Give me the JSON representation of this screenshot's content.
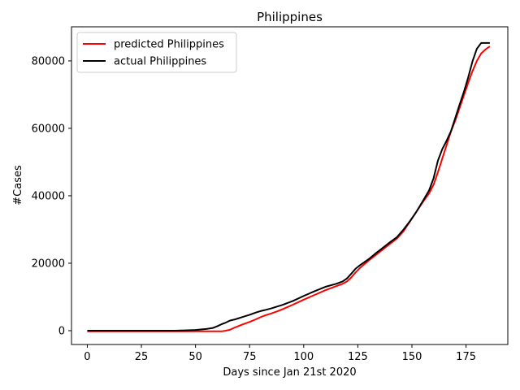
{
  "chart_data": {
    "type": "line",
    "title": "Philippines",
    "xlabel": "Days since Jan 21st 2020",
    "ylabel": "#Cases",
    "xlim": [
      -7.3,
      194.3
    ],
    "ylim": [
      -4100,
      90100
    ],
    "xticks": [
      0,
      25,
      50,
      75,
      100,
      125,
      150,
      175
    ],
    "yticks": [
      0,
      20000,
      40000,
      60000,
      80000
    ],
    "legend_position": "top-left",
    "series": [
      {
        "name": "predicted Philippines",
        "color": "#ff0000",
        "x": [
          0,
          10,
          20,
          30,
          40,
          50,
          55,
          60,
          62,
          64,
          66,
          68,
          70,
          72,
          75,
          78,
          80,
          82,
          85,
          88,
          90,
          95,
          100,
          105,
          110,
          115,
          118,
          120,
          122,
          124,
          126,
          128,
          130,
          133,
          136,
          140,
          143,
          146,
          149,
          152,
          155,
          158,
          160,
          162,
          164,
          166,
          168,
          170,
          172,
          174,
          176,
          178,
          180,
          182,
          184,
          186
        ],
        "values": [
          -200,
          -200,
          -200,
          -200,
          -200,
          -200,
          -200,
          -200,
          -200,
          0,
          300,
          900,
          1400,
          1900,
          2600,
          3400,
          4000,
          4500,
          5100,
          5800,
          6300,
          7700,
          9200,
          10600,
          12000,
          13200,
          13900,
          14600,
          15800,
          17300,
          18600,
          19700,
          20800,
          22300,
          23800,
          25800,
          27300,
          29400,
          32300,
          35200,
          38100,
          40800,
          43300,
          47000,
          51000,
          55000,
          59000,
          62300,
          66000,
          69800,
          73500,
          77000,
          80000,
          82200,
          83400,
          84300
        ]
      },
      {
        "name": "actual Philippines",
        "color": "#000000",
        "x": [
          0,
          10,
          20,
          30,
          40,
          45,
          50,
          55,
          58,
          60,
          62,
          64,
          66,
          68,
          70,
          72,
          75,
          78,
          80,
          82,
          85,
          88,
          90,
          95,
          100,
          105,
          110,
          115,
          118,
          120,
          122,
          124,
          126,
          128,
          130,
          133,
          136,
          140,
          143,
          146,
          149,
          152,
          155,
          158,
          160,
          162,
          164,
          166,
          168,
          170,
          172,
          174,
          176,
          178,
          180,
          182,
          184,
          186
        ],
        "values": [
          0,
          0,
          0,
          0,
          0,
          100,
          200,
          500,
          800,
          1300,
          1900,
          2400,
          3000,
          3300,
          3700,
          4100,
          4700,
          5400,
          5800,
          6100,
          6600,
          7200,
          7600,
          8800,
          10300,
          11700,
          13000,
          13900,
          14600,
          15500,
          16900,
          18400,
          19400,
          20300,
          21200,
          22800,
          24300,
          26300,
          27700,
          29900,
          32400,
          35200,
          38400,
          41700,
          45200,
          50400,
          53800,
          56300,
          59100,
          63000,
          67000,
          70800,
          75100,
          79900,
          83600,
          85300,
          85300,
          85300
        ]
      }
    ]
  }
}
